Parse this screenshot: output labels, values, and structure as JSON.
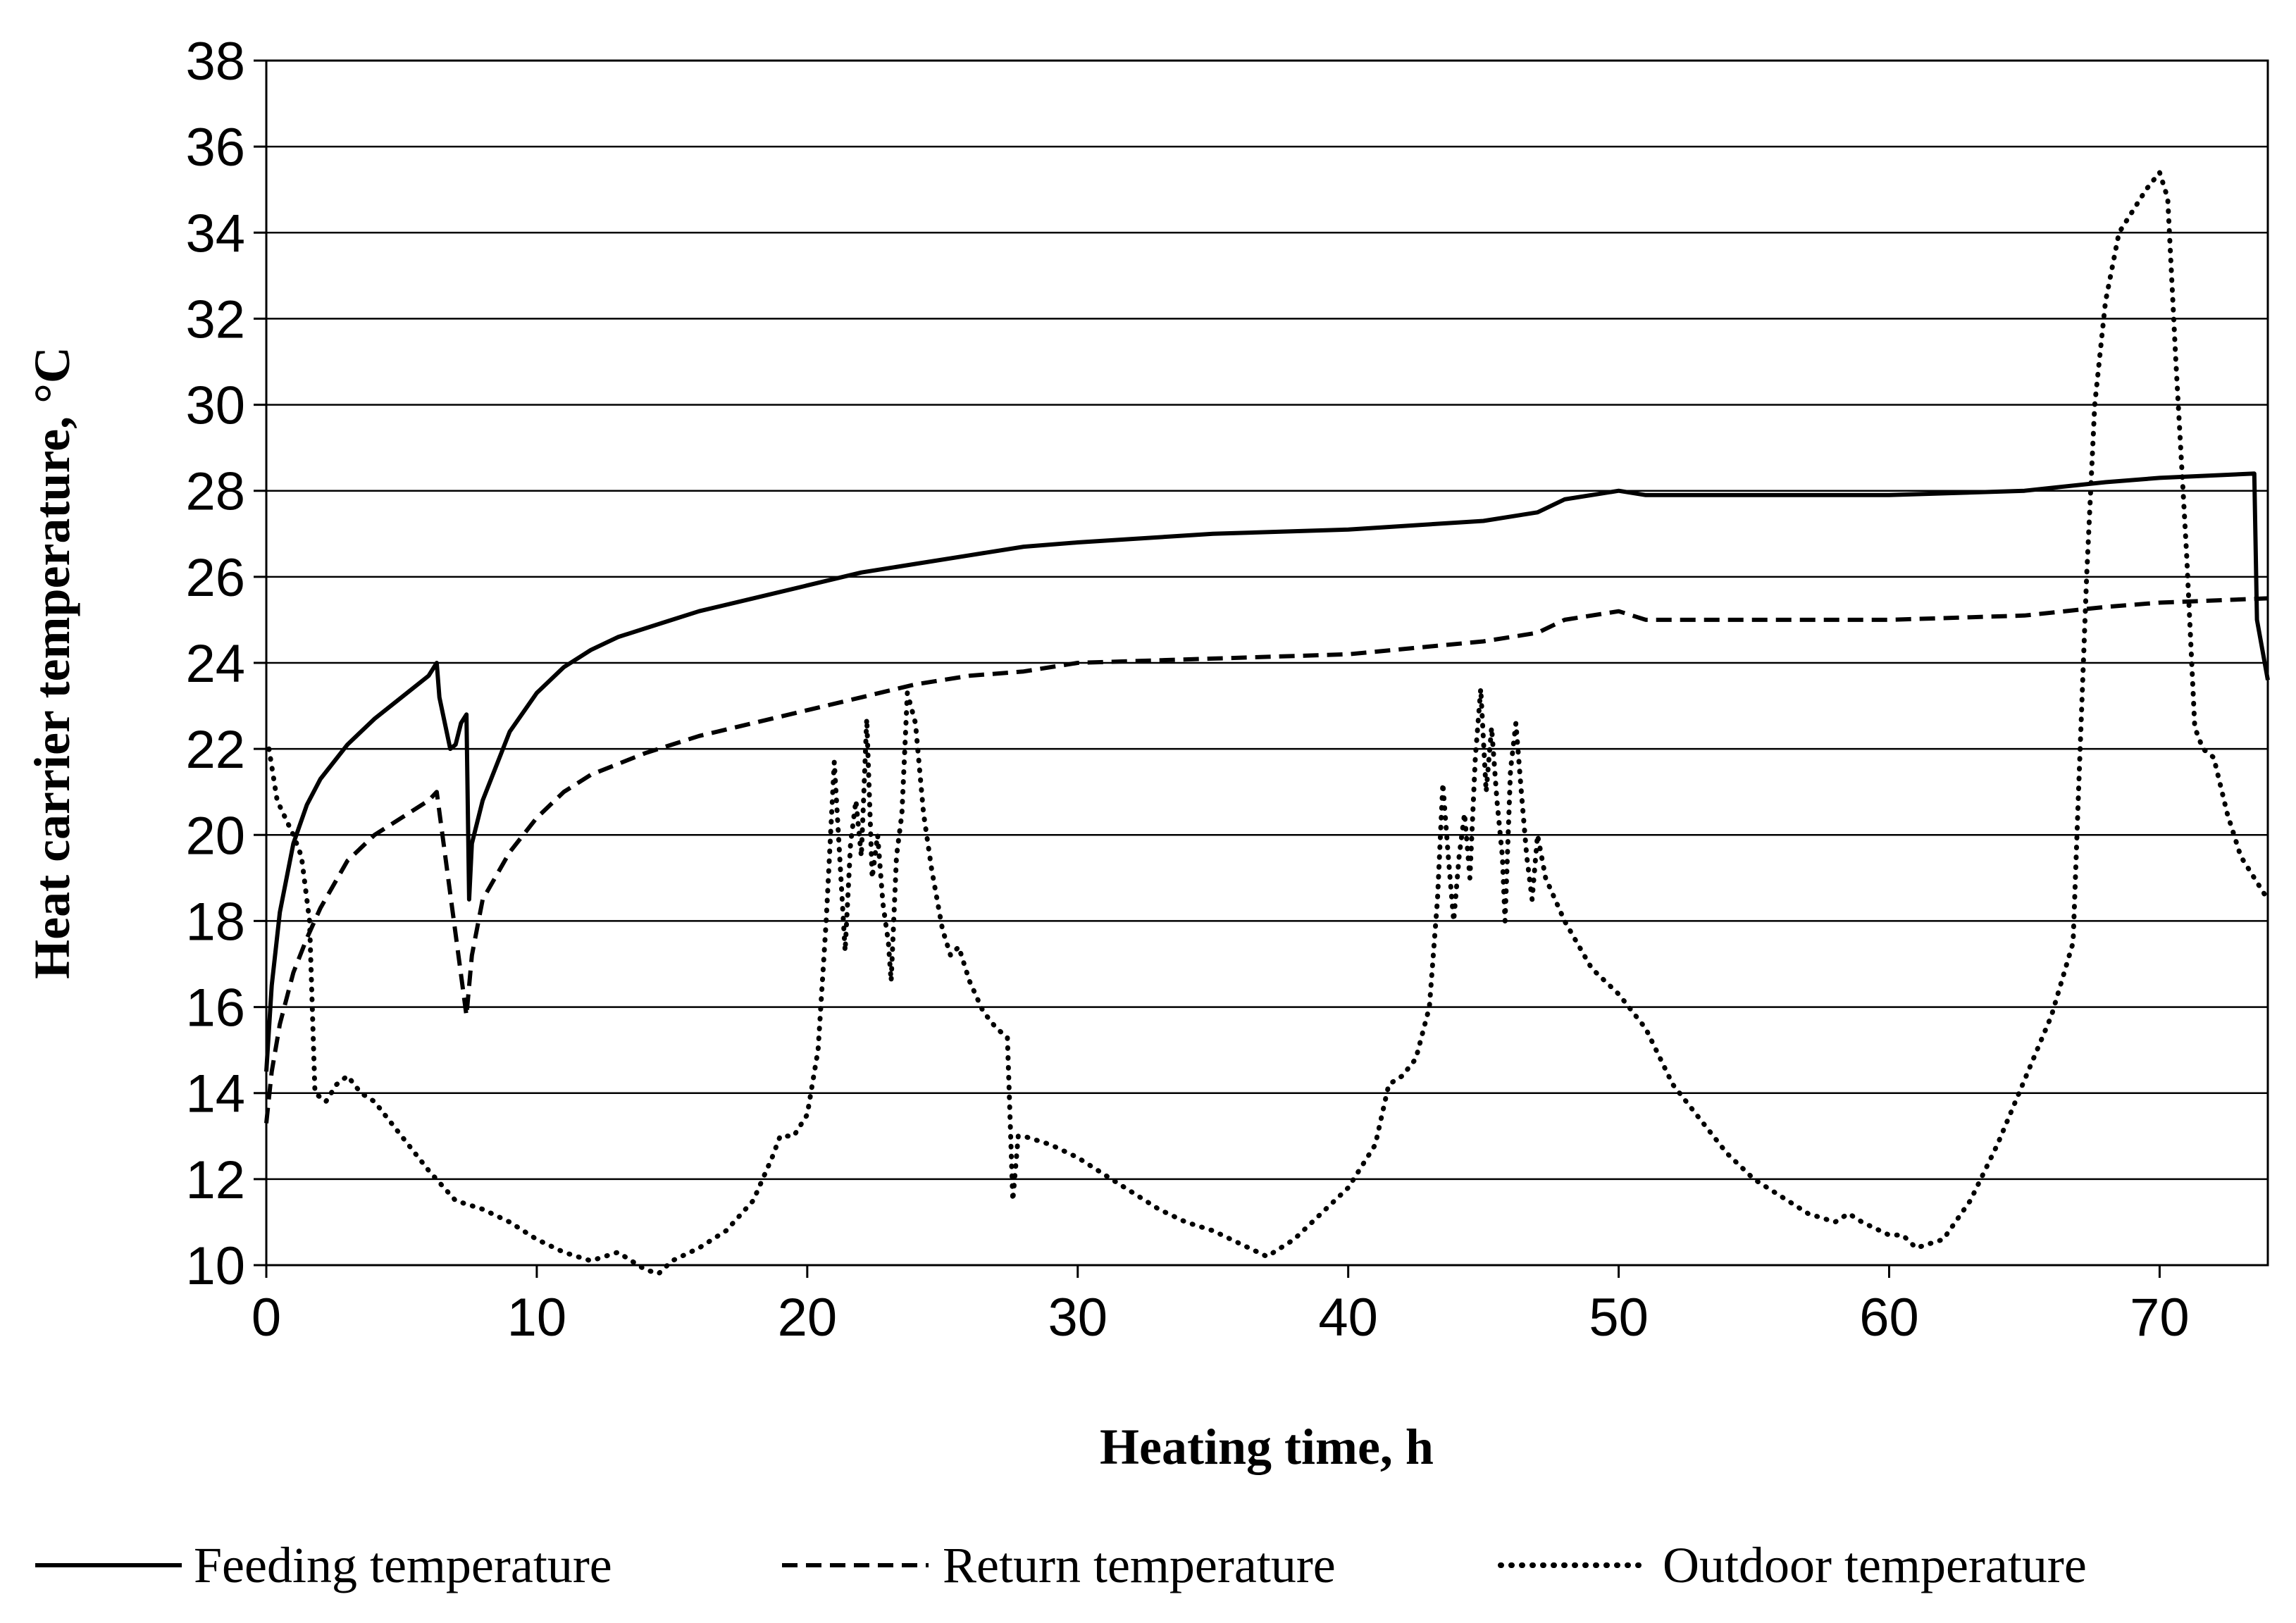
{
  "chart_data": {
    "type": "line",
    "title": "",
    "xlabel": "Heating time, h",
    "ylabel": "Heat carrier temperature, °C",
    "xlim": [
      0,
      74
    ],
    "ylim": [
      10,
      38
    ],
    "xticks": [
      0,
      10,
      20,
      30,
      40,
      50,
      60,
      70
    ],
    "yticks": [
      10,
      12,
      14,
      16,
      18,
      20,
      22,
      24,
      26,
      28,
      30,
      32,
      34,
      36,
      38
    ],
    "grid": "horizontal",
    "legend_position": "bottom",
    "series": [
      {
        "name": "Feeding temperature",
        "style": "solid",
        "color": "#000000",
        "points": [
          [
            0,
            14.5
          ],
          [
            0.2,
            16.5
          ],
          [
            0.5,
            18.2
          ],
          [
            1,
            19.8
          ],
          [
            1.5,
            20.7
          ],
          [
            2,
            21.3
          ],
          [
            3,
            22.1
          ],
          [
            4,
            22.7
          ],
          [
            5,
            23.2
          ],
          [
            6,
            23.7
          ],
          [
            6.3,
            24.0
          ],
          [
            6.4,
            23.2
          ],
          [
            6.6,
            22.6
          ],
          [
            6.8,
            22.0
          ],
          [
            7,
            22.1
          ],
          [
            7.2,
            22.6
          ],
          [
            7.4,
            22.8
          ],
          [
            7.5,
            18.5
          ],
          [
            7.6,
            19.8
          ],
          [
            8,
            20.8
          ],
          [
            9,
            22.4
          ],
          [
            10,
            23.3
          ],
          [
            11,
            23.9
          ],
          [
            12,
            24.3
          ],
          [
            13,
            24.6
          ],
          [
            14,
            24.8
          ],
          [
            15,
            25.0
          ],
          [
            16,
            25.2
          ],
          [
            18,
            25.5
          ],
          [
            20,
            25.8
          ],
          [
            22,
            26.1
          ],
          [
            24,
            26.3
          ],
          [
            26,
            26.5
          ],
          [
            28,
            26.7
          ],
          [
            30,
            26.8
          ],
          [
            35,
            27.0
          ],
          [
            40,
            27.1
          ],
          [
            45,
            27.3
          ],
          [
            47,
            27.5
          ],
          [
            48,
            27.8
          ],
          [
            50,
            28.0
          ],
          [
            51,
            27.9
          ],
          [
            55,
            27.9
          ],
          [
            60,
            27.9
          ],
          [
            65,
            28.0
          ],
          [
            68,
            28.2
          ],
          [
            70,
            28.3
          ],
          [
            73.5,
            28.4
          ],
          [
            73.6,
            25.0
          ],
          [
            74,
            23.6
          ]
        ]
      },
      {
        "name": "Return temperature",
        "style": "dashed",
        "color": "#000000",
        "points": [
          [
            0,
            13.3
          ],
          [
            0.2,
            14.5
          ],
          [
            0.5,
            15.6
          ],
          [
            1,
            16.8
          ],
          [
            1.5,
            17.6
          ],
          [
            2,
            18.3
          ],
          [
            3,
            19.4
          ],
          [
            4,
            20.0
          ],
          [
            5,
            20.4
          ],
          [
            6,
            20.8
          ],
          [
            6.3,
            21.0
          ],
          [
            7.4,
            15.8
          ],
          [
            7.6,
            17.2
          ],
          [
            8,
            18.5
          ],
          [
            9,
            19.6
          ],
          [
            10,
            20.4
          ],
          [
            11,
            21.0
          ],
          [
            12,
            21.4
          ],
          [
            14,
            21.9
          ],
          [
            16,
            22.3
          ],
          [
            18,
            22.6
          ],
          [
            20,
            22.9
          ],
          [
            22,
            23.2
          ],
          [
            24,
            23.5
          ],
          [
            26,
            23.7
          ],
          [
            28,
            23.8
          ],
          [
            30,
            24.0
          ],
          [
            35,
            24.1
          ],
          [
            40,
            24.2
          ],
          [
            45,
            24.5
          ],
          [
            47,
            24.7
          ],
          [
            48,
            25.0
          ],
          [
            50,
            25.2
          ],
          [
            51,
            25.0
          ],
          [
            55,
            25.0
          ],
          [
            60,
            25.0
          ],
          [
            65,
            25.1
          ],
          [
            68,
            25.3
          ],
          [
            70,
            25.4
          ],
          [
            74,
            25.5
          ]
        ]
      },
      {
        "name": "Outdoor temperature",
        "style": "dotted",
        "color": "#000000",
        "points": [
          [
            0.1,
            22.0
          ],
          [
            0.4,
            20.8
          ],
          [
            0.7,
            20.4
          ],
          [
            1.0,
            20.0
          ],
          [
            1.3,
            19.5
          ],
          [
            1.6,
            18.0
          ],
          [
            1.8,
            14.0
          ],
          [
            2.2,
            13.8
          ],
          [
            2.6,
            14.2
          ],
          [
            3,
            14.4
          ],
          [
            3.5,
            14.0
          ],
          [
            4,
            13.8
          ],
          [
            5,
            13.0
          ],
          [
            6,
            12.2
          ],
          [
            7,
            11.5
          ],
          [
            8,
            11.3
          ],
          [
            9,
            11.0
          ],
          [
            10,
            10.6
          ],
          [
            11,
            10.3
          ],
          [
            12,
            10.1
          ],
          [
            12.5,
            10.2
          ],
          [
            13,
            10.3
          ],
          [
            13.5,
            10.1
          ],
          [
            14,
            9.9
          ],
          [
            14.5,
            9.8
          ],
          [
            15,
            10.1
          ],
          [
            16,
            10.4
          ],
          [
            17,
            10.8
          ],
          [
            18,
            11.5
          ],
          [
            18.7,
            12.5
          ],
          [
            19,
            13.0
          ],
          [
            19.5,
            13.0
          ],
          [
            20,
            13.5
          ],
          [
            20.4,
            15.0
          ],
          [
            20.7,
            18.0
          ],
          [
            21,
            21.7
          ],
          [
            21.2,
            19.5
          ],
          [
            21.4,
            17.3
          ],
          [
            21.6,
            19.8
          ],
          [
            21.8,
            20.8
          ],
          [
            22,
            19.5
          ],
          [
            22.2,
            22.7
          ],
          [
            22.4,
            19.0
          ],
          [
            22.6,
            20.0
          ],
          [
            22.8,
            18.4
          ],
          [
            23,
            17.5
          ],
          [
            23.1,
            16.6
          ],
          [
            23.3,
            19.5
          ],
          [
            23.5,
            20.5
          ],
          [
            23.7,
            23.3
          ],
          [
            24,
            22.6
          ],
          [
            24.3,
            20.5
          ],
          [
            24.6,
            19.2
          ],
          [
            25,
            17.8
          ],
          [
            25.3,
            17.2
          ],
          [
            25.6,
            17.4
          ],
          [
            26,
            16.6
          ],
          [
            26.5,
            15.9
          ],
          [
            27,
            15.5
          ],
          [
            27.4,
            15.3
          ],
          [
            27.6,
            11.5
          ],
          [
            27.8,
            13.0
          ],
          [
            28,
            13.0
          ],
          [
            29,
            12.8
          ],
          [
            30,
            12.5
          ],
          [
            31,
            12.1
          ],
          [
            32,
            11.7
          ],
          [
            33,
            11.3
          ],
          [
            34,
            11.0
          ],
          [
            35,
            10.8
          ],
          [
            36,
            10.5
          ],
          [
            37,
            10.2
          ],
          [
            38,
            10.6
          ],
          [
            39,
            11.2
          ],
          [
            40,
            11.8
          ],
          [
            41,
            12.8
          ],
          [
            41.5,
            14.2
          ],
          [
            42,
            14.4
          ],
          [
            42.5,
            14.8
          ],
          [
            43,
            16.0
          ],
          [
            43.3,
            18.5
          ],
          [
            43.5,
            21.2
          ],
          [
            43.7,
            19.5
          ],
          [
            43.9,
            18.0
          ],
          [
            44.1,
            19.5
          ],
          [
            44.3,
            20.5
          ],
          [
            44.5,
            19.0
          ],
          [
            44.7,
            21.8
          ],
          [
            44.9,
            23.4
          ],
          [
            45.1,
            21.0
          ],
          [
            45.3,
            22.5
          ],
          [
            45.5,
            20.8
          ],
          [
            45.7,
            19.5
          ],
          [
            45.8,
            18.0
          ],
          [
            46,
            21.5
          ],
          [
            46.2,
            22.6
          ],
          [
            46.4,
            21.0
          ],
          [
            46.6,
            19.5
          ],
          [
            46.8,
            18.5
          ],
          [
            47,
            20.0
          ],
          [
            47.3,
            19.0
          ],
          [
            48,
            18.0
          ],
          [
            49,
            16.9
          ],
          [
            50,
            16.3
          ],
          [
            51,
            15.5
          ],
          [
            52,
            14.2
          ],
          [
            53,
            13.4
          ],
          [
            54,
            12.6
          ],
          [
            55,
            12.0
          ],
          [
            56,
            11.6
          ],
          [
            57,
            11.2
          ],
          [
            58,
            11.0
          ],
          [
            58.5,
            11.2
          ],
          [
            59,
            11.0
          ],
          [
            60,
            10.7
          ],
          [
            60.5,
            10.7
          ],
          [
            61,
            10.4
          ],
          [
            62,
            10.6
          ],
          [
            63,
            11.5
          ],
          [
            64,
            12.8
          ],
          [
            65,
            14.3
          ],
          [
            66,
            15.8
          ],
          [
            66.8,
            17.5
          ],
          [
            67,
            21.0
          ],
          [
            67.3,
            26.0
          ],
          [
            67.6,
            30.0
          ],
          [
            68,
            32.4
          ],
          [
            68.5,
            34.0
          ],
          [
            69,
            34.5
          ],
          [
            69.5,
            35.0
          ],
          [
            70,
            35.4
          ],
          [
            70.3,
            34.8
          ],
          [
            70.6,
            31.0
          ],
          [
            71,
            26.5
          ],
          [
            71.3,
            22.5
          ],
          [
            71.6,
            22.0
          ],
          [
            72,
            21.8
          ],
          [
            72.5,
            20.5
          ],
          [
            73,
            19.5
          ],
          [
            74,
            18.5
          ]
        ]
      }
    ]
  }
}
